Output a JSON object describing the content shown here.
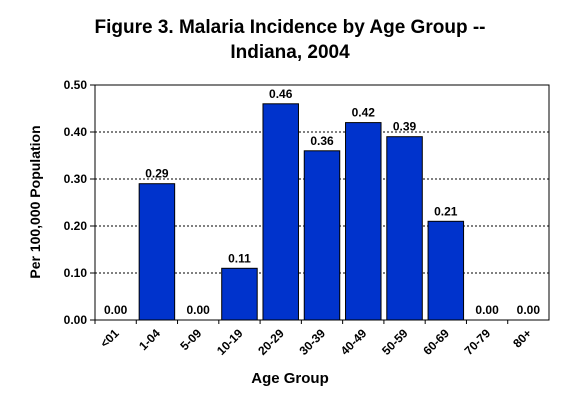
{
  "chart_data": {
    "type": "bar",
    "title": [
      "Figure 3. Malaria Incidence by Age Group --",
      "Indiana, 2004"
    ],
    "xlabel": "Age Group",
    "ylabel": "Per 100,000 Population",
    "categories": [
      "<01",
      "1-04",
      "5-09",
      "10-19",
      "20-29",
      "30-39",
      "40-49",
      "50-59",
      "60-69",
      "70-79",
      "80+"
    ],
    "values": [
      0.0,
      0.29,
      0.0,
      0.11,
      0.46,
      0.36,
      0.42,
      0.39,
      0.21,
      0.0,
      0.0
    ],
    "data_labels": [
      "0.00",
      "0.29",
      "0.00",
      "0.11",
      "0.46",
      "0.36",
      "0.42",
      "0.39",
      "0.21",
      "0.00",
      "0.00"
    ],
    "yticks": [
      "0.00",
      "0.10",
      "0.20",
      "0.30",
      "0.40",
      "0.50"
    ],
    "ylim": [
      0,
      0.5
    ],
    "grid": true,
    "bar_color": "#0033cc"
  }
}
